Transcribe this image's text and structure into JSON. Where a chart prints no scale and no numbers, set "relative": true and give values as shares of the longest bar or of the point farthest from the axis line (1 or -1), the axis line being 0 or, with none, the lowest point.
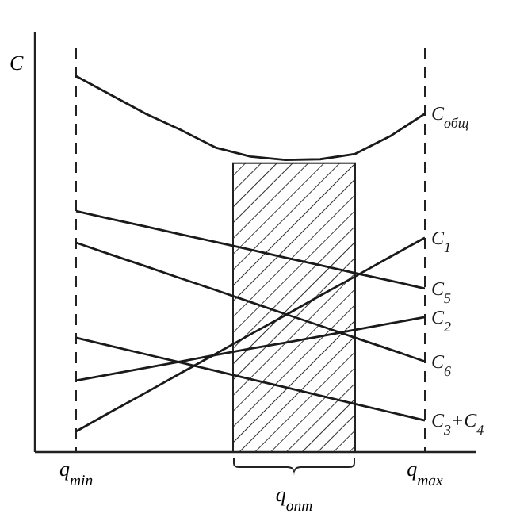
{
  "chart_data": {
    "type": "line",
    "relative": true,
    "ylabel": "C",
    "categories": [
      "q$_{min}$",
      null,
      null,
      null,
      null,
      null,
      null,
      null,
      null,
      null,
      "q$_{max}$"
    ],
    "tick_labels": "x",
    "marker": "none",
    "line_style": "solid",
    "series": [
      {
        "name": "C$_{общ}$",
        "color": "#1a1a1a",
        "values": [
          1.0,
          0.95,
          0.9,
          0.857,
          0.81,
          0.786,
          0.777,
          0.779,
          0.793,
          0.84,
          0.9
        ]
      },
      {
        "name": "C$_{1}$",
        "color": "#1a1a1a",
        "values": [
          0.055,
          0.107,
          0.158,
          0.21,
          0.261,
          0.313,
          0.364,
          0.416,
          0.467,
          0.519,
          0.57
        ]
      },
      {
        "name": "C$_{5}$",
        "color": "#1a1a1a",
        "values": [
          0.641,
          0.62,
          0.6,
          0.579,
          0.559,
          0.538,
          0.517,
          0.497,
          0.476,
          0.456,
          0.435
        ]
      },
      {
        "name": "C$_{2}$",
        "color": "#1a1a1a",
        "values": [
          0.19,
          0.207,
          0.224,
          0.241,
          0.258,
          0.275,
          0.291,
          0.308,
          0.325,
          0.342,
          0.359
        ]
      },
      {
        "name": "C$_{6}$",
        "color": "#1a1a1a",
        "values": [
          0.557,
          0.525,
          0.494,
          0.462,
          0.431,
          0.399,
          0.367,
          0.336,
          0.304,
          0.273,
          0.241
        ]
      },
      {
        "name": "C$_{3}$+C$_{4}$",
        "color": "#1a1a1a",
        "values": [
          0.304,
          0.282,
          0.26,
          0.238,
          0.216,
          0.194,
          0.172,
          0.15,
          0.128,
          0.106,
          0.084
        ]
      }
    ],
    "ref_lines": [
      {
        "axis": "x",
        "value": "q$_{min}$",
        "line_style": "dashed"
      },
      {
        "axis": "x",
        "value": "q$_{max}$",
        "line_style": "dashed"
      }
    ],
    "annotations": [
      "q$_{опт}$"
    ]
  }
}
